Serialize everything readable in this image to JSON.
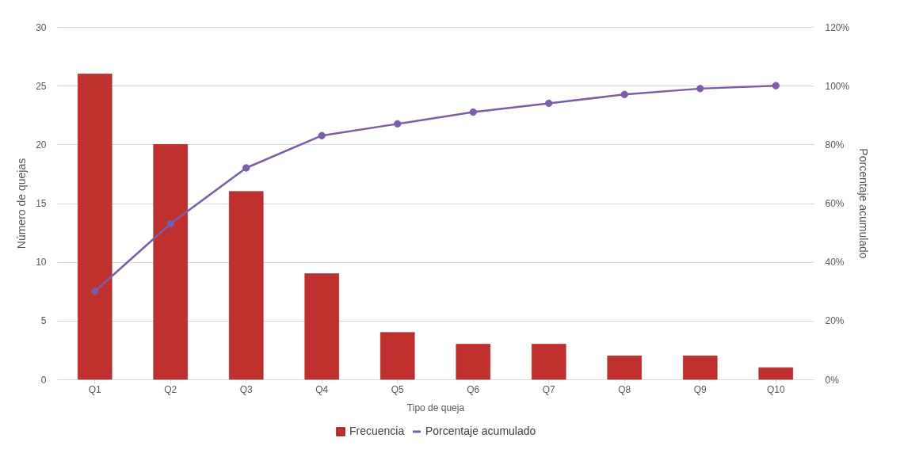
{
  "chart_data": {
    "type": "bar",
    "xlabel": "Tipo de queja",
    "ylabel": "Número de quejas",
    "y2label": "Porcentaje acumulado",
    "categories": [
      "Q1",
      "Q2",
      "Q3",
      "Q4",
      "Q5",
      "Q6",
      "Q7",
      "Q8",
      "Q9",
      "Q10"
    ],
    "series": [
      {
        "name": "Frecuencia",
        "color": "#c0302f",
        "values": [
          26,
          20,
          16,
          9,
          4,
          3,
          3,
          2,
          2,
          1
        ]
      },
      {
        "name": "Porcentaje acumulado",
        "type": "line",
        "axis": "y2",
        "color": "#7b5ea7",
        "values": [
          30,
          53,
          72,
          83,
          87,
          91,
          94,
          97,
          99,
          100
        ]
      }
    ],
    "ylim": [
      0,
      30
    ],
    "yticks": [
      0,
      5,
      10,
      15,
      20,
      25,
      30
    ],
    "y2lim": [
      0,
      120
    ],
    "y2ticks": [
      {
        "value": 0,
        "label": "0%"
      },
      {
        "value": 20,
        "label": "20%"
      },
      {
        "value": 40,
        "label": "40%"
      },
      {
        "value": 60,
        "label": "60%"
      },
      {
        "value": 80,
        "label": "80%"
      },
      {
        "value": 100,
        "label": "100%"
      },
      {
        "value": 120,
        "label": "120%"
      }
    ],
    "grid": "y",
    "legend": "bottom",
    "marker": "circle",
    "line_style": "solid"
  }
}
